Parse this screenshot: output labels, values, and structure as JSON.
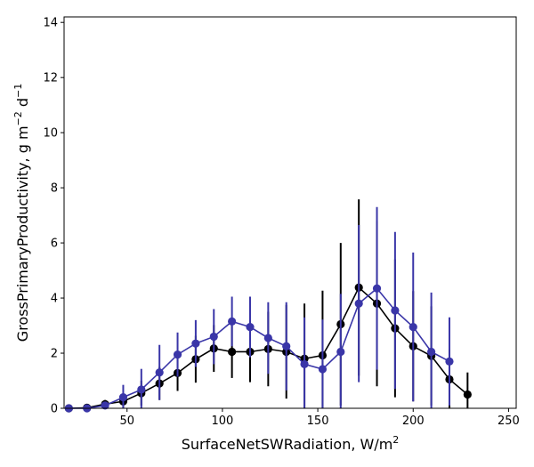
{
  "chart_data": {
    "type": "line",
    "title": "",
    "xlabel": "SurfaceNetSWRadiation,  W/m",
    "xlabel_sup": "2",
    "ylabel": "GrossPrimaryProductivity,  g m",
    "ylabel_sup1": "−2",
    "ylabel_mid": " d",
    "ylabel_sup2": "−1",
    "xlim": [
      17,
      254
    ],
    "ylim": [
      0,
      14.2
    ],
    "xticks": [
      50,
      100,
      150,
      200,
      250
    ],
    "yticks": [
      0,
      2,
      4,
      6,
      8,
      10,
      12,
      14
    ],
    "series": [
      {
        "name": "series-black",
        "color": "#000000",
        "x": [
          19.5,
          29,
          38.5,
          48,
          57.5,
          67,
          76.5,
          86,
          95.5,
          105,
          114.5,
          124,
          133.5,
          143,
          152.5,
          162,
          171.5,
          181,
          190.5,
          200,
          209.5,
          219,
          228.5
        ],
        "y": [
          0.0,
          0.02,
          0.15,
          0.25,
          0.55,
          0.9,
          1.28,
          1.78,
          2.17,
          2.05,
          2.05,
          2.15,
          2.05,
          1.8,
          1.92,
          3.05,
          4.38,
          3.8,
          2.9,
          2.25,
          1.9,
          1.05,
          0.5
        ],
        "err": [
          0.0,
          0.05,
          0.15,
          0.3,
          0.45,
          0.6,
          0.65,
          0.85,
          0.85,
          0.95,
          1.1,
          1.35,
          1.7,
          2.0,
          2.35,
          2.95,
          3.2,
          3.0,
          2.5,
          2.0,
          1.8,
          1.1,
          0.8
        ]
      },
      {
        "name": "series-blue",
        "color": "#3a36a8",
        "x": [
          19.5,
          29,
          38.5,
          48,
          57.5,
          67,
          76.5,
          86,
          95.5,
          105,
          114.5,
          124,
          133.5,
          143,
          152.5,
          162,
          171.5,
          181,
          190.5,
          200,
          209.5,
          219
        ],
        "y": [
          0.0,
          0.0,
          0.1,
          0.4,
          0.68,
          1.3,
          1.95,
          2.35,
          2.6,
          3.15,
          2.95,
          2.55,
          2.25,
          1.6,
          1.42,
          2.05,
          3.8,
          4.35,
          3.55,
          2.95,
          2.05,
          1.7
        ],
        "err": [
          0.0,
          0.0,
          0.1,
          0.45,
          0.75,
          1.0,
          0.8,
          0.85,
          1.0,
          0.9,
          1.1,
          1.3,
          1.6,
          1.7,
          1.8,
          2.1,
          2.85,
          2.95,
          2.85,
          2.7,
          2.15,
          1.6
        ]
      }
    ]
  }
}
